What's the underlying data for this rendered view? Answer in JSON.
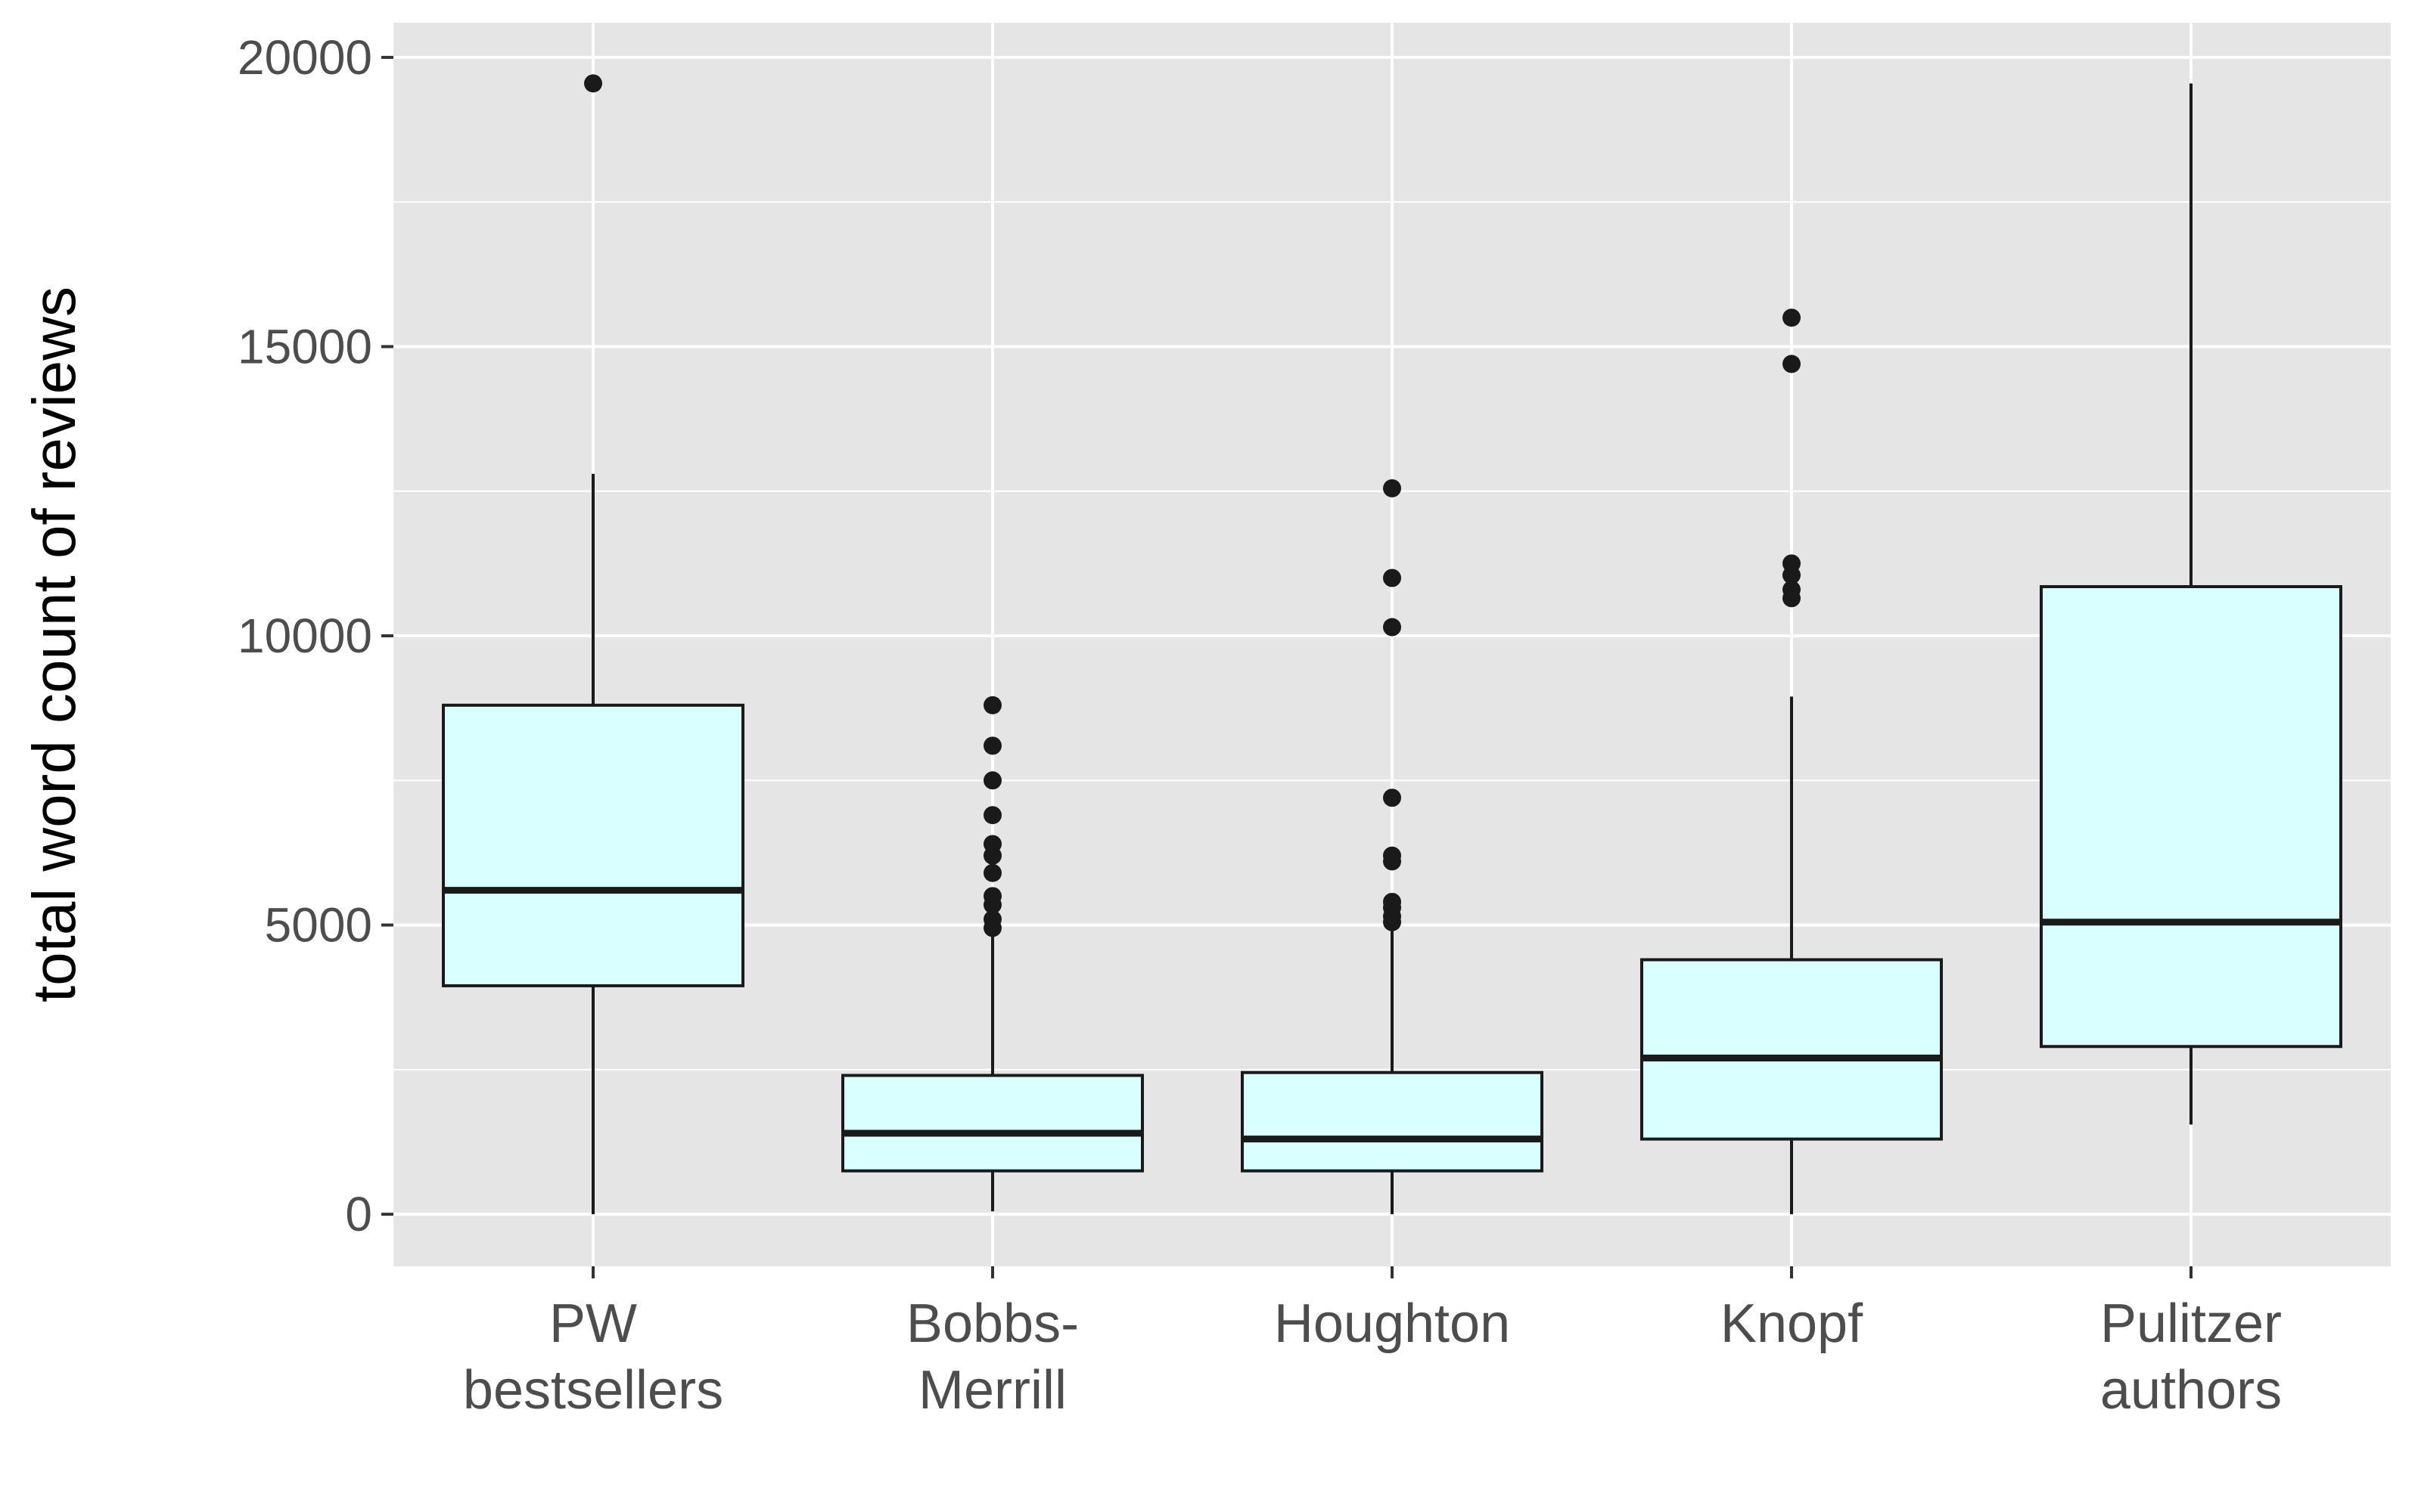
{
  "chart_data": {
    "type": "boxplot",
    "title": "",
    "xlabel": "",
    "ylabel": "total word count of reviews",
    "ylim": [
      -900,
      20600
    ],
    "yticks": [
      0,
      5000,
      10000,
      15000,
      20000
    ],
    "ytick_labels": [
      "0",
      "5000",
      "10000",
      "15000",
      "20000"
    ],
    "grid": true,
    "legend": "none",
    "colors": {
      "panel": "#e5e5e5",
      "grid": "#ffffff",
      "box_fill": "#d9ffff",
      "box_stroke": "#1a1a1a",
      "outlier": "#1a1a1a"
    },
    "categories": [
      {
        "id": "pw-bestsellers",
        "label_lines": [
          "PW",
          "bestsellers"
        ]
      },
      {
        "id": "bobbs-merrill",
        "label_lines": [
          "Bobbs-",
          "Merrill"
        ]
      },
      {
        "id": "houghton",
        "label_lines": [
          "Houghton"
        ]
      },
      {
        "id": "knopf",
        "label_lines": [
          "Knopf"
        ]
      },
      {
        "id": "pulitzer-authors",
        "label_lines": [
          "Pulitzer",
          "authors"
        ]
      }
    ],
    "boxes": [
      {
        "whisker_low": 0,
        "q1": 3950,
        "median": 5600,
        "q3": 8800,
        "whisker_high": 12800,
        "outliers": [
          19550
        ]
      },
      {
        "whisker_low": 50,
        "q1": 750,
        "median": 1400,
        "q3": 2400,
        "whisker_high": 4900,
        "outliers": [
          4950,
          5100,
          5350,
          5500,
          5900,
          6200,
          6400,
          6900,
          7500,
          8100,
          8800
        ]
      },
      {
        "whisker_low": 0,
        "q1": 750,
        "median": 1300,
        "q3": 2450,
        "whisker_high": 4950,
        "outliers": [
          5050,
          5150,
          5300,
          5400,
          6100,
          6200,
          7200,
          10150,
          11000,
          12550
        ]
      },
      {
        "whisker_low": 0,
        "q1": 1300,
        "median": 2700,
        "q3": 4400,
        "whisker_high": 8950,
        "outliers": [
          10650,
          10800,
          11050,
          11250,
          14700,
          15500
        ]
      },
      {
        "whisker_low": 1550,
        "q1": 2900,
        "median": 5050,
        "q3": 10850,
        "whisker_high": 19550,
        "outliers": []
      }
    ]
  }
}
